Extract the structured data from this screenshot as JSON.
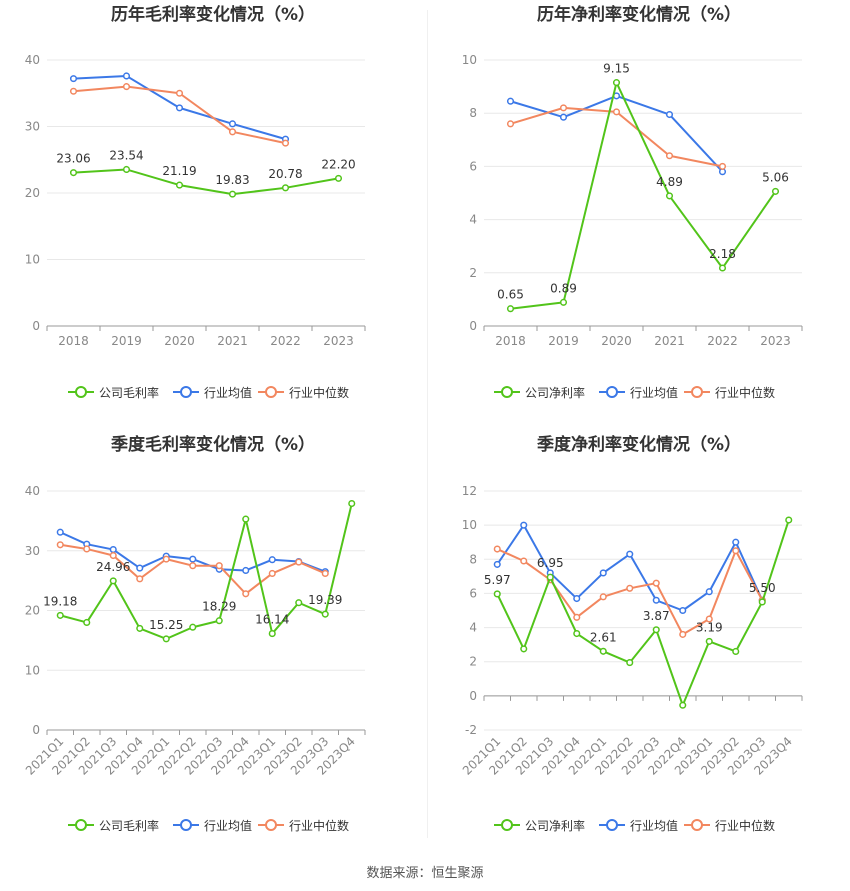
{
  "source": "数据来源：恒生聚源",
  "chart_data": [
    {
      "type": "line",
      "title": "历年毛利率变化情况（%）",
      "categories": [
        "2018",
        "2019",
        "2020",
        "2021",
        "2022",
        "2023"
      ],
      "ylim": [
        0,
        40
      ],
      "yticks": [
        0,
        10,
        20,
        30,
        40
      ],
      "grid": true,
      "legend_position": "bottom",
      "series": [
        {
          "name": "公司毛利率",
          "color": "#52c41a",
          "values": [
            23.06,
            23.54,
            21.19,
            19.83,
            20.78,
            22.2
          ],
          "labels": [
            "23.06",
            "23.54",
            "21.19",
            "19.83",
            "20.78",
            "22.20"
          ]
        },
        {
          "name": "行业均值",
          "color": "#3b78e7",
          "values": [
            37.2,
            37.6,
            32.8,
            30.4,
            28.1,
            null
          ]
        },
        {
          "name": "行业中位数",
          "color": "#f2875f",
          "values": [
            35.3,
            36.0,
            35.0,
            29.2,
            27.5,
            null
          ]
        }
      ]
    },
    {
      "type": "line",
      "title": "历年净利率变化情况（%）",
      "categories": [
        "2018",
        "2019",
        "2020",
        "2021",
        "2022",
        "2023"
      ],
      "ylim": [
        0,
        10
      ],
      "yticks": [
        0,
        2,
        4,
        6,
        8,
        10
      ],
      "grid": true,
      "legend_position": "bottom",
      "series": [
        {
          "name": "公司净利率",
          "color": "#52c41a",
          "values": [
            0.65,
            0.89,
            9.15,
            4.89,
            2.18,
            5.06
          ],
          "labels": [
            "0.65",
            "0.89",
            "9.15",
            "4.89",
            "2.18",
            "5.06"
          ]
        },
        {
          "name": "行业均值",
          "color": "#3b78e7",
          "values": [
            8.45,
            7.85,
            8.65,
            7.95,
            5.8,
            null
          ]
        },
        {
          "name": "行业中位数",
          "color": "#f2875f",
          "values": [
            7.6,
            8.2,
            8.05,
            6.4,
            6.0,
            null
          ]
        }
      ]
    },
    {
      "type": "line",
      "title": "季度毛利率变化情况（%）",
      "categories": [
        "2021Q1",
        "2021Q2",
        "2021Q3",
        "2021Q4",
        "2022Q1",
        "2022Q2",
        "2022Q3",
        "2022Q4",
        "2023Q1",
        "2023Q2",
        "2023Q3",
        "2023Q4"
      ],
      "ylim": [
        0,
        40
      ],
      "yticks": [
        0,
        10,
        20,
        30,
        40
      ],
      "grid": true,
      "legend_position": "bottom",
      "series": [
        {
          "name": "公司毛利率",
          "color": "#52c41a",
          "values": [
            19.18,
            18.0,
            24.96,
            17.0,
            15.25,
            17.2,
            18.29,
            35.3,
            16.14,
            21.3,
            19.39,
            37.9
          ],
          "labels": [
            "19.18",
            "",
            "24.96",
            "",
            "15.25",
            "",
            "18.29",
            "",
            "16.14",
            "",
            "19.39",
            ""
          ]
        },
        {
          "name": "行业均值",
          "color": "#3b78e7",
          "values": [
            33.1,
            31.1,
            30.2,
            27.1,
            29.1,
            28.6,
            26.9,
            26.7,
            28.5,
            28.2,
            26.5,
            null
          ]
        },
        {
          "name": "行业中位数",
          "color": "#f2875f",
          "values": [
            31.0,
            30.3,
            29.2,
            25.3,
            28.6,
            27.5,
            27.5,
            22.8,
            26.2,
            28.1,
            26.2,
            null
          ]
        }
      ]
    },
    {
      "type": "line",
      "title": "季度净利率变化情况（%）",
      "categories": [
        "2021Q1",
        "2021Q2",
        "2021Q3",
        "2021Q4",
        "2022Q1",
        "2022Q2",
        "2022Q3",
        "2022Q4",
        "2023Q1",
        "2023Q2",
        "2023Q3",
        "2023Q4"
      ],
      "ylim": [
        -2,
        12
      ],
      "yticks": [
        -2,
        0,
        2,
        4,
        6,
        8,
        10,
        12
      ],
      "grid": true,
      "legend_position": "bottom",
      "series": [
        {
          "name": "公司净利率",
          "color": "#52c41a",
          "values": [
            5.97,
            2.75,
            6.95,
            3.65,
            2.61,
            1.95,
            3.87,
            -0.55,
            3.19,
            2.6,
            5.5,
            10.3
          ],
          "labels": [
            "5.97",
            "",
            "6.95",
            "",
            "2.61",
            "",
            "3.87",
            "",
            "3.19",
            "",
            "5.50",
            ""
          ]
        },
        {
          "name": "行业均值",
          "color": "#3b78e7",
          "values": [
            7.7,
            10.0,
            7.2,
            5.7,
            7.2,
            8.3,
            5.6,
            5.0,
            6.1,
            9.0,
            5.6,
            null
          ]
        },
        {
          "name": "行业中位数",
          "color": "#f2875f",
          "values": [
            8.6,
            7.9,
            6.8,
            4.6,
            5.8,
            6.3,
            6.6,
            3.6,
            4.5,
            8.5,
            5.6,
            null
          ]
        }
      ]
    }
  ]
}
